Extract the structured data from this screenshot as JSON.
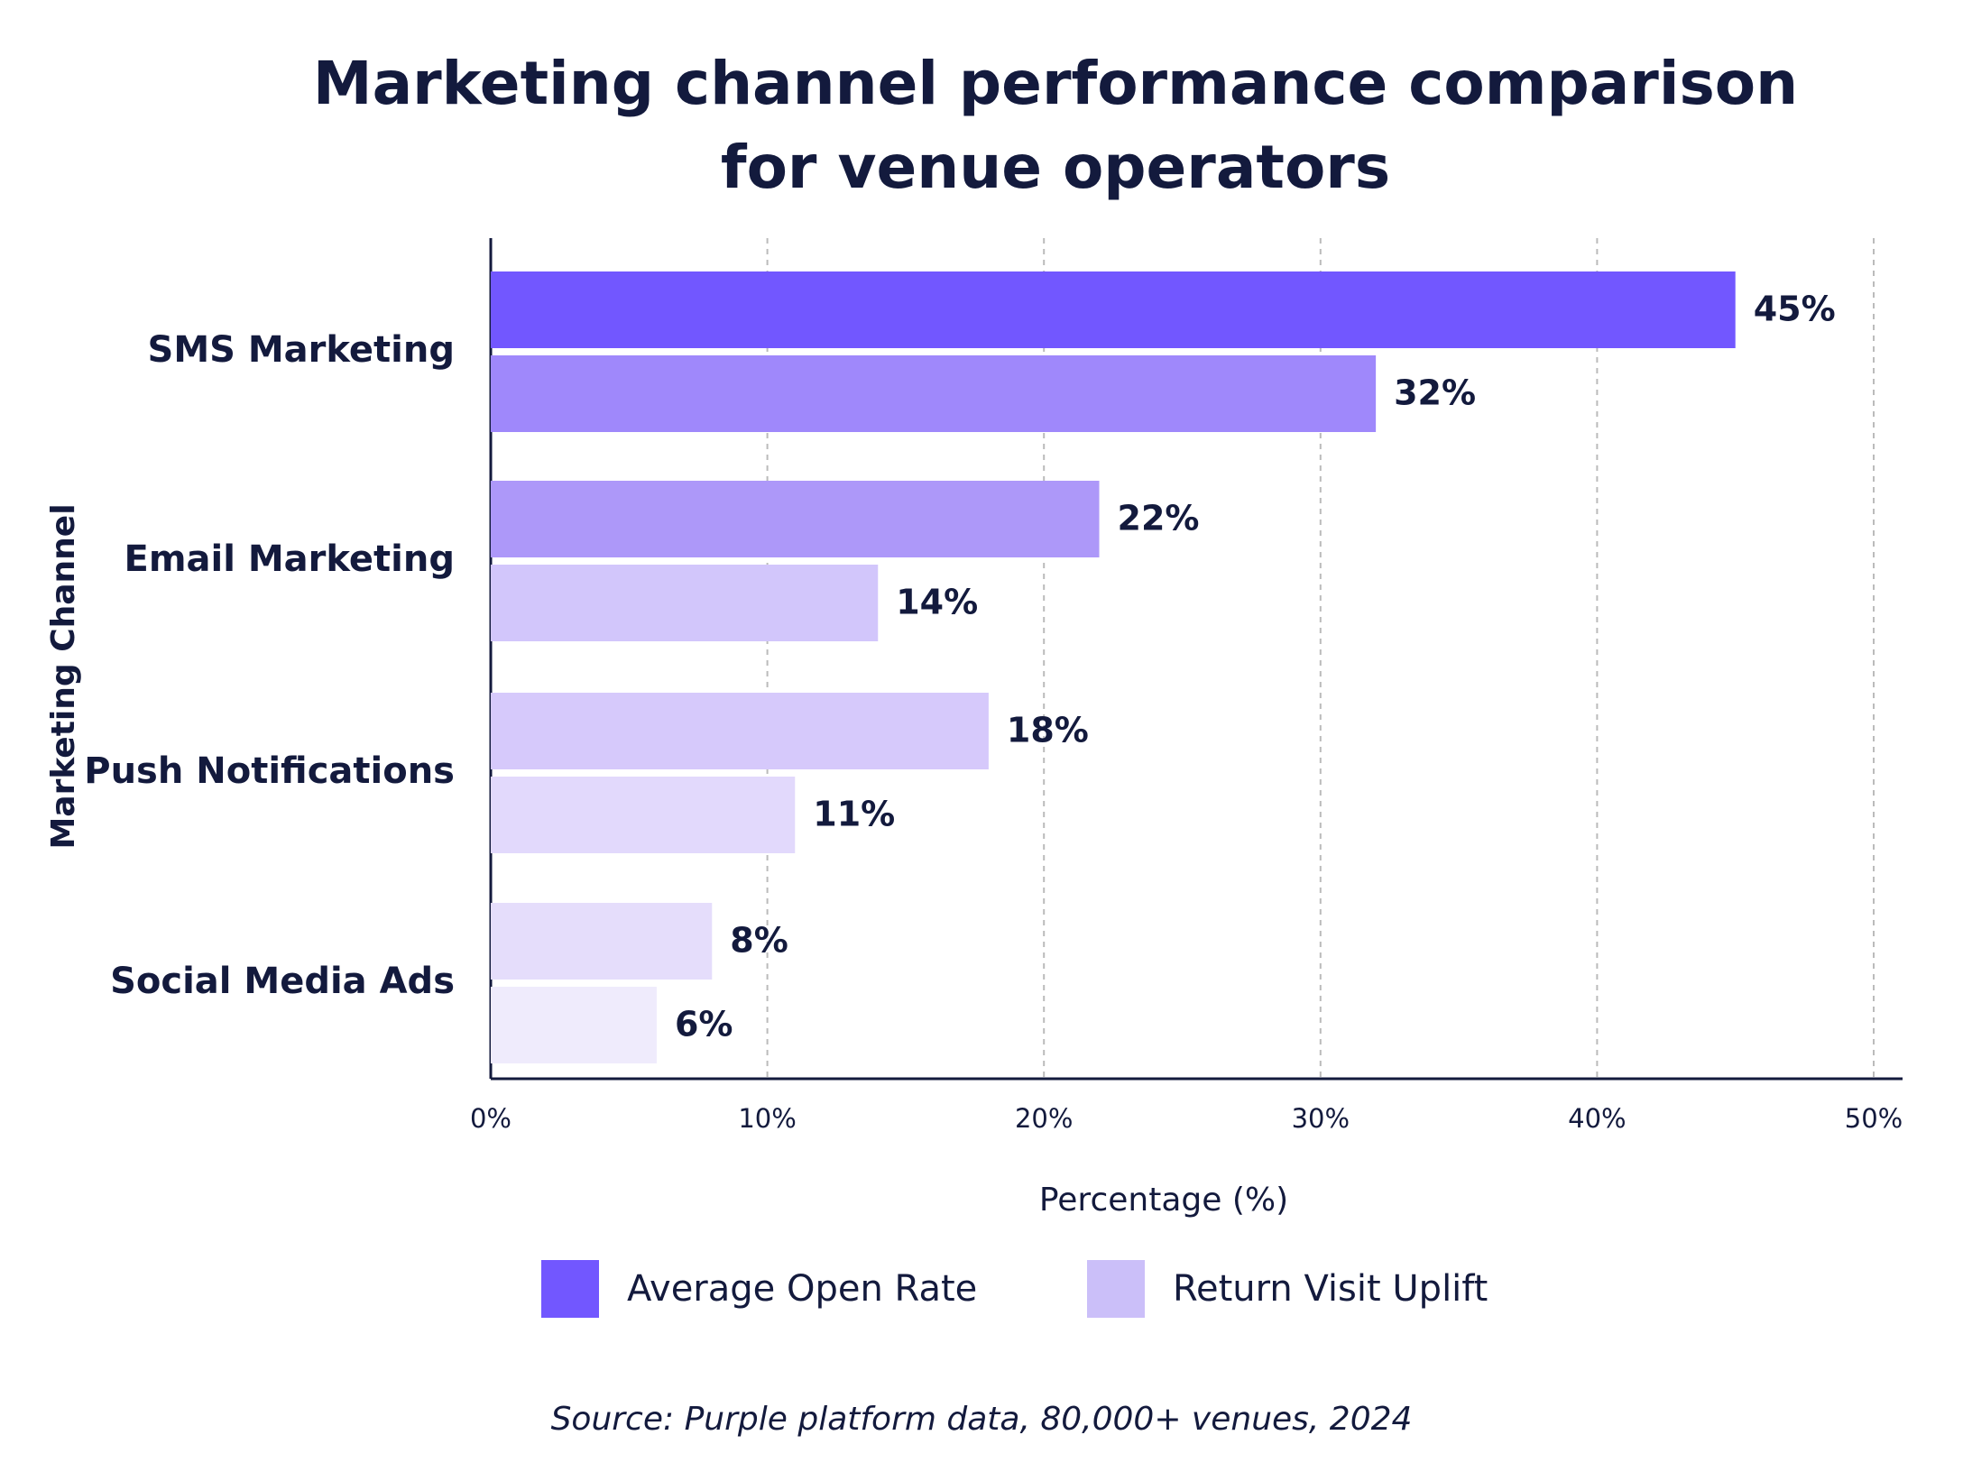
{
  "chart_data": {
    "type": "hbar",
    "title": [
      "Marketing channel performance comparison",
      "for venue operators"
    ],
    "xlabel": "Percentage (%)",
    "ylabel": "Marketing Channel",
    "source": "Source:  Purple platform data, 80,000+ venues, 2024",
    "categories": [
      "SMS Marketing",
      "Email Marketing",
      "Push Notifications",
      "Social Media Ads"
    ],
    "series": [
      {
        "name": "Average Open Rate",
        "color": "#7257ff",
        "colors": [
          "#7257ff",
          "#ad98f9",
          "#d6c9fb",
          "#e5ddfb"
        ],
        "values": [
          45,
          22,
          18,
          8
        ],
        "value_labels": [
          "45%",
          "22%",
          "18%",
          "8%"
        ]
      },
      {
        "name": "Return Visit Uplift",
        "color": "#cbbff9",
        "colors": [
          "#9f88fb",
          "#d2c6fb",
          "#e2d9fc",
          "#efebfc"
        ],
        "values": [
          32,
          14,
          11,
          6
        ],
        "value_labels": [
          "32%",
          "14%",
          "11%",
          "6%"
        ]
      }
    ],
    "xlim": [
      0,
      50
    ],
    "xticks": [
      {
        "value": 0,
        "label": "0%"
      },
      {
        "value": 10,
        "label": "10%"
      },
      {
        "value": 20,
        "label": "20%"
      },
      {
        "value": 30,
        "label": "30%"
      },
      {
        "value": 40,
        "label": "40%"
      },
      {
        "value": 50,
        "label": "50%"
      }
    ],
    "grid": true,
    "legend": "bottom"
  }
}
